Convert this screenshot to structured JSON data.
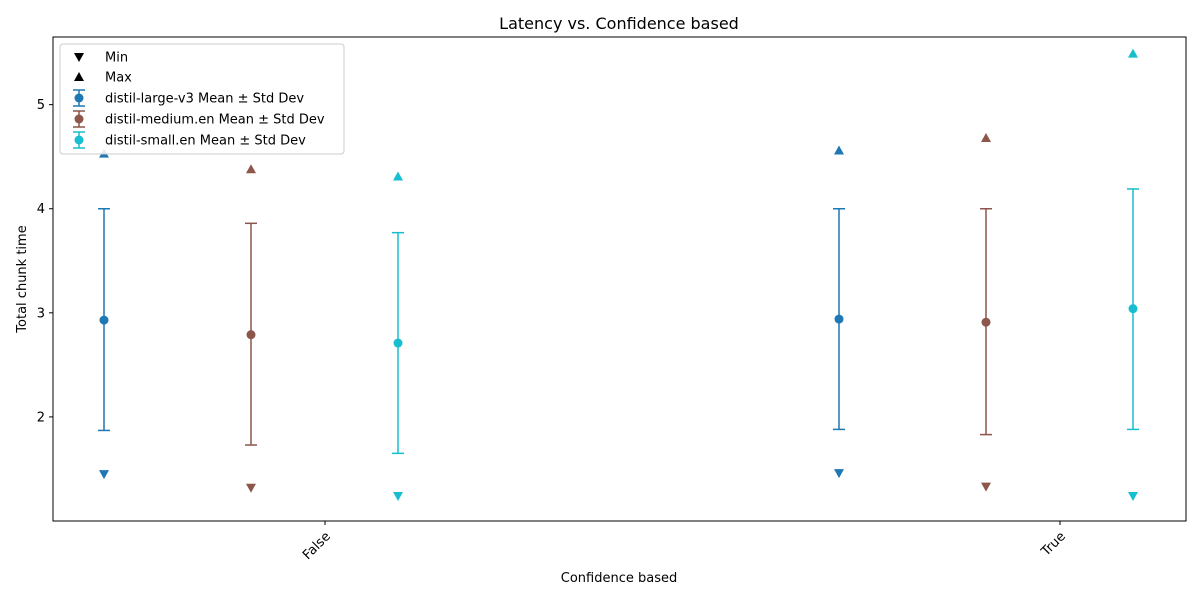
{
  "chart_data": {
    "type": "scatter",
    "title": "Latency vs. Confidence based",
    "xlabel": "Confidence based",
    "ylabel": "Total chunk time",
    "categories": [
      "False",
      "True"
    ],
    "ylim": [
      1.0,
      5.65
    ],
    "yticks": [
      2,
      3,
      4,
      5
    ],
    "grid": false,
    "legend_position": "top-left",
    "series": [
      {
        "name": "distil-large-v3 Mean ± Std Dev",
        "color": "#1f77b4",
        "values": [
          {
            "category": "False",
            "mean": 2.93,
            "lower": 1.87,
            "upper": 4.0,
            "min": 1.45,
            "max": 4.53
          },
          {
            "category": "True",
            "mean": 2.94,
            "lower": 1.88,
            "upper": 4.0,
            "min": 1.46,
            "max": 4.56
          }
        ]
      },
      {
        "name": "distil-medium.en Mean ± Std Dev",
        "color": "#8c564b",
        "values": [
          {
            "category": "False",
            "mean": 2.79,
            "lower": 1.73,
            "upper": 3.86,
            "min": 1.32,
            "max": 4.38
          },
          {
            "category": "True",
            "mean": 2.91,
            "lower": 1.83,
            "upper": 4.0,
            "min": 1.33,
            "max": 4.68
          }
        ]
      },
      {
        "name": "distil-small.en Mean ± Std Dev",
        "color": "#17becf",
        "values": [
          {
            "category": "False",
            "mean": 2.71,
            "lower": 1.65,
            "upper": 3.77,
            "min": 1.24,
            "max": 4.31
          },
          {
            "category": "True",
            "mean": 3.04,
            "lower": 1.88,
            "upper": 4.19,
            "min": 1.24,
            "max": 5.49
          }
        ]
      }
    ],
    "legend": {
      "min_label": "Min",
      "max_label": "Max"
    }
  }
}
